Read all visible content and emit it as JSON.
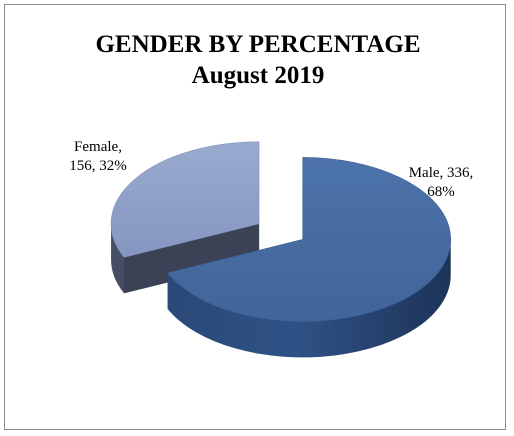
{
  "chart_data": {
    "type": "pie",
    "title": "GENDER BY PERCENTAGE",
    "subtitle": "August 2019",
    "three_d": true,
    "exploded": true,
    "slices": [
      {
        "category": "Male",
        "value": 336,
        "percent": 68,
        "label_line1": "Male, 336,",
        "label_line2": "68%",
        "color_top": "#4a6fa5",
        "color_side": "#2a4472"
      },
      {
        "category": "Female",
        "value": 156,
        "percent": 32,
        "label_line1": "Female,",
        "label_line2": "156, 32%",
        "color_top": "#8da0c8",
        "color_side": "#454d61"
      }
    ],
    "legend": "none"
  }
}
